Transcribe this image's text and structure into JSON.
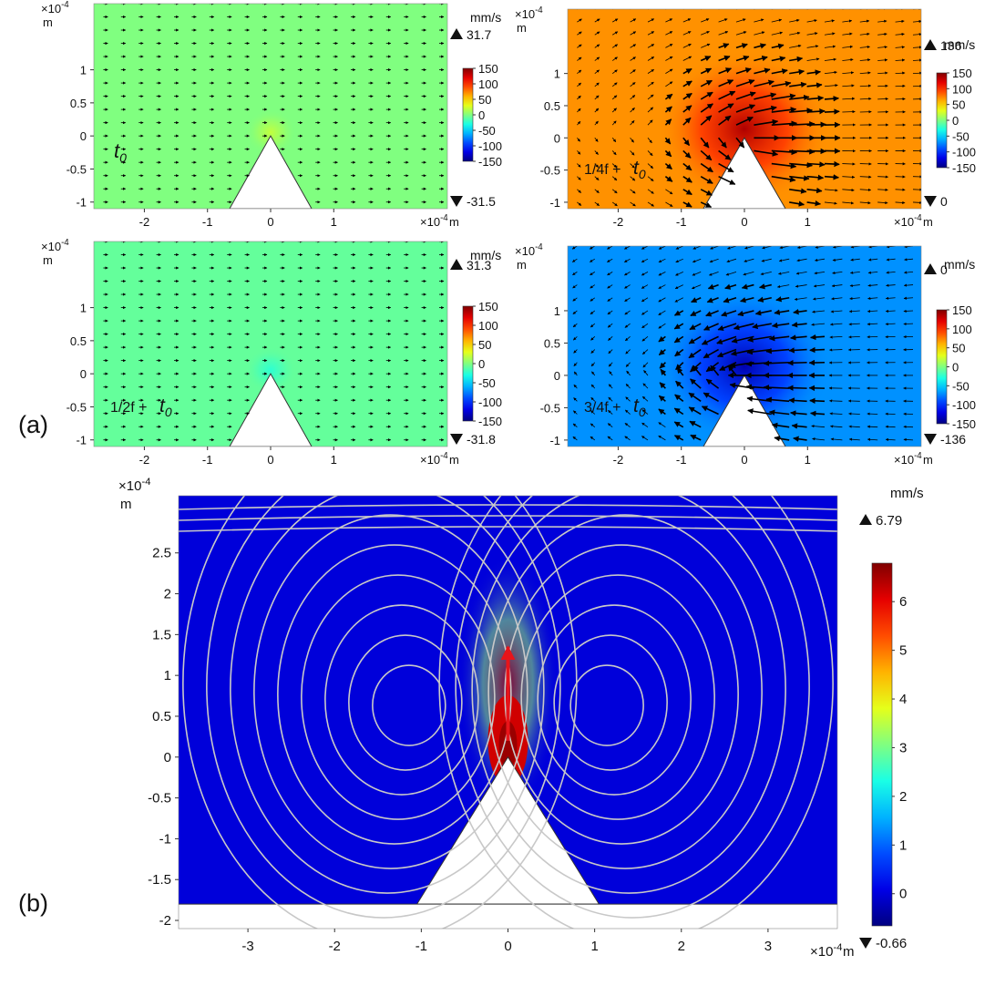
{
  "figure_labels": {
    "a": "(a)",
    "b": "(b)"
  },
  "chart_data": [
    {
      "type": "heatmap",
      "id": "a-t0",
      "title": "",
      "annotation_base": "t",
      "annotation_sub": "0",
      "annotation_frac": "",
      "xlabel": "m",
      "ylabel": "m",
      "x_exponent": "×10",
      "exp_power": "-4",
      "xlim": [
        -2.8,
        2.8
      ],
      "ylim": [
        -1.1,
        2.0
      ],
      "xticks": [
        -2,
        -1,
        0,
        1
      ],
      "xtick_labels": [
        "-2",
        "-1",
        "0",
        "1"
      ],
      "yticks": [
        -1,
        -0.5,
        0,
        0.5,
        1
      ],
      "ytick_labels": [
        "-1",
        "-0.5",
        "0",
        "0.5",
        "1"
      ],
      "colorbar": {
        "unit": "mm/s",
        "range": [
          -150,
          150
        ],
        "ticks": [
          "150",
          "100",
          "50",
          "0",
          "-50",
          "-100",
          "-150"
        ],
        "max_label": "31.7",
        "min_label": "-31.5"
      },
      "field": {
        "base_value": 0,
        "tip_value": 20,
        "arrow_magnitude": 0.15
      }
    },
    {
      "type": "heatmap",
      "id": "a-quarter",
      "title": "",
      "annotation_base": "t",
      "annotation_sub": "0",
      "annotation_frac": "1/4f +",
      "xlabel": "m",
      "ylabel": "m",
      "x_exponent": "×10",
      "exp_power": "-4",
      "xlim": [
        -2.8,
        2.8
      ],
      "ylim": [
        -1.1,
        2.0
      ],
      "xticks": [
        -2,
        -1,
        0,
        1
      ],
      "xtick_labels": [
        "-2",
        "-1",
        "0",
        "1"
      ],
      "yticks": [
        -1,
        -0.5,
        0,
        0.5,
        1
      ],
      "ytick_labels": [
        "-1",
        "-0.5",
        "0",
        "0.5",
        "1"
      ],
      "colorbar": {
        "unit": "mm/s",
        "range": [
          -150,
          150
        ],
        "ticks": [
          "150",
          "100",
          "50",
          "0",
          "-50",
          "-100",
          "-150"
        ],
        "max_label": "136",
        "min_label": "0"
      },
      "field": {
        "base_value": 70,
        "tip_value": 136,
        "arrow_magnitude": 1.0
      }
    },
    {
      "type": "heatmap",
      "id": "a-half",
      "title": "",
      "annotation_base": "t",
      "annotation_sub": "0",
      "annotation_frac": "1/2f +",
      "xlabel": "m",
      "ylabel": "m",
      "x_exponent": "×10",
      "exp_power": "-4",
      "xlim": [
        -2.8,
        2.8
      ],
      "ylim": [
        -1.1,
        2.0
      ],
      "xticks": [
        -2,
        -1,
        0,
        1
      ],
      "xtick_labels": [
        "-2",
        "-1",
        "0",
        "1"
      ],
      "yticks": [
        -1,
        -0.5,
        0,
        0.5,
        1
      ],
      "ytick_labels": [
        "-1",
        "-0.5",
        "0",
        "0.5",
        "1"
      ],
      "colorbar": {
        "unit": "mm/s",
        "range": [
          -150,
          150
        ],
        "ticks": [
          "150",
          "100",
          "50",
          "0",
          "-50",
          "-100",
          "-150"
        ],
        "max_label": "31.3",
        "min_label": "-31.8"
      },
      "field": {
        "base_value": -8,
        "tip_value": -25,
        "arrow_magnitude": 0.15
      }
    },
    {
      "type": "heatmap",
      "id": "a-threequarter",
      "title": "",
      "annotation_base": "t",
      "annotation_sub": "0",
      "annotation_frac": "3/4f +",
      "xlabel": "m",
      "ylabel": "m",
      "x_exponent": "×10",
      "exp_power": "-4",
      "xlim": [
        -2.8,
        2.8
      ],
      "ylim": [
        -1.1,
        2.0
      ],
      "xticks": [
        -2,
        -1,
        0,
        1
      ],
      "xtick_labels": [
        "-2",
        "-1",
        "0",
        "1"
      ],
      "yticks": [
        -1,
        -0.5,
        0,
        0.5,
        1
      ],
      "ytick_labels": [
        "-1",
        "-0.5",
        "0",
        "0.5",
        "1"
      ],
      "colorbar": {
        "unit": "mm/s",
        "range": [
          -150,
          150
        ],
        "ticks": [
          "150",
          "100",
          "50",
          "0",
          "-50",
          "-100",
          "-150"
        ],
        "max_label": "0",
        "min_label": "-136"
      },
      "field": {
        "base_value": -70,
        "tip_value": -136,
        "arrow_magnitude": -1.0
      }
    },
    {
      "type": "heatmap",
      "id": "b-streaming",
      "title": "",
      "xlabel": "m",
      "ylabel": "m",
      "x_exponent": "×10",
      "exp_power": "-4",
      "xlim": [
        -3.8,
        3.8
      ],
      "ylim": [
        -2.1,
        3.2
      ],
      "xticks": [
        -3,
        -2,
        -1,
        0,
        1,
        2,
        3
      ],
      "xtick_labels": [
        "-3",
        "-2",
        "-1",
        "0",
        "1",
        "2",
        "3"
      ],
      "yticks": [
        -2,
        -1.5,
        -1,
        -0.5,
        0,
        0.5,
        1,
        1.5,
        2,
        2.5
      ],
      "ytick_labels": [
        "-2",
        "-1.5",
        "-1",
        "-0.5",
        "0",
        "0.5",
        "1",
        "1.5",
        "2",
        "2.5"
      ],
      "colorbar": {
        "unit": "mm/s",
        "range": [
          -0.66,
          6.79
        ],
        "ticks": [
          "6",
          "5",
          "4",
          "3",
          "2",
          "1",
          "0"
        ],
        "tick_values": [
          6,
          5,
          4,
          3,
          2,
          1,
          0
        ],
        "max_label": "6.79",
        "min_label": "-0.66"
      },
      "streamlines": true
    }
  ]
}
